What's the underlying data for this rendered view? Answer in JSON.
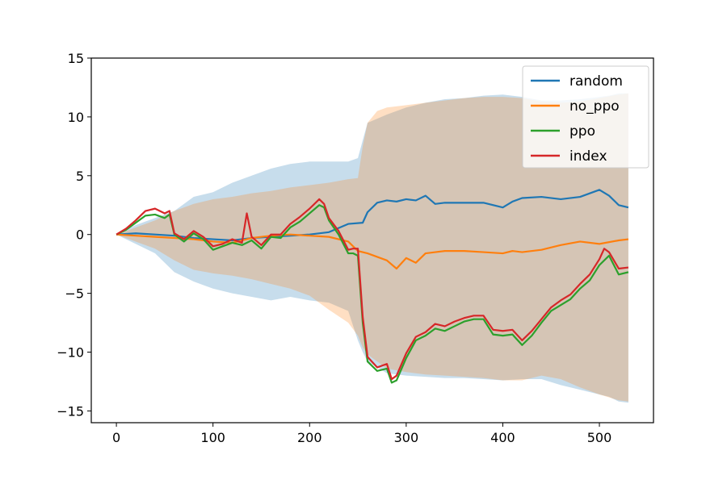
{
  "chart_data": {
    "type": "line",
    "xlim": [
      -26,
      556
    ],
    "ylim": [
      -16,
      15
    ],
    "xticks": [
      0,
      100,
      200,
      300,
      400,
      500
    ],
    "yticks": [
      -15,
      -10,
      -5,
      0,
      5,
      10,
      15
    ],
    "xtick_labels": [
      "0",
      "100",
      "200",
      "300",
      "400",
      "500"
    ],
    "ytick_labels": [
      "−15",
      "−10",
      "−5",
      "0",
      "5",
      "10",
      "15"
    ],
    "legend_position": "top-right",
    "series": [
      {
        "name": "random",
        "color": "#1f77b4",
        "x": [
          0,
          20,
          40,
          60,
          80,
          100,
          120,
          140,
          160,
          180,
          200,
          220,
          240,
          255,
          260,
          270,
          280,
          290,
          300,
          310,
          320,
          330,
          340,
          360,
          380,
          400,
          410,
          420,
          440,
          460,
          480,
          500,
          510,
          520,
          530
        ],
        "y": [
          0,
          0.1,
          0.0,
          -0.1,
          -0.3,
          -0.4,
          -0.5,
          -0.3,
          -0.2,
          -0.1,
          0.0,
          0.2,
          0.9,
          1.0,
          1.9,
          2.7,
          2.9,
          2.8,
          3.0,
          2.9,
          3.3,
          2.6,
          2.7,
          2.7,
          2.7,
          2.3,
          2.8,
          3.1,
          3.2,
          3.0,
          3.2,
          3.8,
          3.3,
          2.5,
          2.3
        ],
        "band": {
          "x": [
            0,
            20,
            40,
            60,
            80,
            100,
            120,
            140,
            160,
            180,
            200,
            220,
            240,
            250,
            255,
            260,
            280,
            300,
            320,
            340,
            360,
            380,
            400,
            420,
            440,
            460,
            480,
            500,
            510,
            520,
            530
          ],
          "upper": [
            0,
            0.8,
            1.4,
            2.0,
            3.2,
            3.6,
            4.4,
            5.0,
            5.6,
            6.0,
            6.2,
            6.2,
            6.2,
            6.5,
            8.0,
            9.5,
            10.2,
            10.8,
            11.2,
            11.5,
            11.6,
            11.8,
            11.9,
            11.7,
            11.4,
            11.4,
            11.5,
            11.7,
            11.8,
            12.0,
            12.0
          ],
          "lower": [
            0,
            -0.8,
            -1.6,
            -3.2,
            -4.0,
            -4.6,
            -5.0,
            -5.3,
            -5.6,
            -5.3,
            -5.6,
            -5.8,
            -6.5,
            -9.0,
            -10.0,
            -10.8,
            -11.8,
            -12.0,
            -12.1,
            -12.2,
            -12.2,
            -12.3,
            -12.4,
            -12.3,
            -12.3,
            -12.8,
            -13.2,
            -13.6,
            -13.8,
            -14.2,
            -14.3
          ]
        }
      },
      {
        "name": "no_ppo",
        "color": "#ff7f0e",
        "x": [
          0,
          20,
          40,
          60,
          80,
          100,
          120,
          140,
          160,
          180,
          200,
          220,
          240,
          250,
          260,
          270,
          280,
          290,
          300,
          310,
          320,
          340,
          360,
          380,
          400,
          410,
          420,
          440,
          460,
          480,
          500,
          520,
          530
        ],
        "y": [
          0,
          -0.1,
          -0.2,
          -0.3,
          -0.4,
          -0.6,
          -0.7,
          -0.3,
          -0.1,
          0.0,
          -0.1,
          -0.2,
          -0.6,
          -1.4,
          -1.6,
          -1.9,
          -2.2,
          -2.9,
          -2.0,
          -2.4,
          -1.6,
          -1.4,
          -1.4,
          -1.5,
          -1.6,
          -1.4,
          -1.5,
          -1.3,
          -0.9,
          -0.6,
          -0.8,
          -0.5,
          -0.4
        ],
        "band": {
          "x": [
            0,
            20,
            40,
            60,
            80,
            100,
            120,
            140,
            160,
            180,
            200,
            220,
            240,
            250,
            255,
            260,
            270,
            280,
            300,
            320,
            340,
            360,
            380,
            400,
            420,
            440,
            460,
            480,
            500,
            520,
            530
          ],
          "upper": [
            0,
            0.6,
            1.2,
            2.0,
            2.6,
            3.0,
            3.2,
            3.5,
            3.7,
            4.0,
            4.2,
            4.4,
            4.7,
            4.8,
            7.5,
            9.5,
            10.5,
            10.8,
            11.0,
            11.2,
            11.4,
            11.6,
            11.7,
            11.7,
            11.6,
            11.3,
            11.2,
            11.3,
            11.6,
            11.9,
            12.0
          ],
          "lower": [
            0,
            -0.6,
            -1.2,
            -2.2,
            -3.0,
            -3.3,
            -3.5,
            -3.8,
            -4.2,
            -4.6,
            -5.2,
            -6.4,
            -7.5,
            -8.6,
            -9.6,
            -10.2,
            -10.8,
            -11.4,
            -11.7,
            -11.9,
            -12.0,
            -12.1,
            -12.2,
            -12.4,
            -12.4,
            -12.0,
            -12.3,
            -13.0,
            -13.6,
            -14.1,
            -14.2
          ]
        }
      },
      {
        "name": "ppo",
        "color": "#2ca02c",
        "x": [
          0,
          10,
          20,
          30,
          40,
          50,
          55,
          60,
          70,
          80,
          90,
          100,
          110,
          120,
          130,
          140,
          150,
          160,
          170,
          180,
          190,
          200,
          210,
          215,
          220,
          230,
          240,
          245,
          250,
          255,
          260,
          270,
          280,
          285,
          290,
          300,
          310,
          320,
          330,
          340,
          350,
          360,
          370,
          380,
          390,
          400,
          410,
          420,
          430,
          440,
          450,
          460,
          470,
          480,
          490,
          500,
          510,
          520,
          530
        ],
        "y": [
          0,
          0.4,
          1.0,
          1.6,
          1.7,
          1.4,
          1.7,
          0.0,
          -0.6,
          0.1,
          -0.4,
          -1.3,
          -1.0,
          -0.7,
          -0.9,
          -0.5,
          -1.2,
          -0.2,
          -0.3,
          0.6,
          1.1,
          1.8,
          2.5,
          2.3,
          1.2,
          0.0,
          -1.6,
          -1.6,
          -1.8,
          -7.5,
          -10.8,
          -11.6,
          -11.4,
          -12.6,
          -12.4,
          -10.5,
          -9.0,
          -8.6,
          -8.0,
          -8.2,
          -7.8,
          -7.4,
          -7.2,
          -7.2,
          -8.5,
          -8.6,
          -8.5,
          -9.4,
          -8.6,
          -7.5,
          -6.5,
          -6.0,
          -5.5,
          -4.6,
          -3.9,
          -2.6,
          -1.8,
          -3.4,
          -3.2
        ]
      },
      {
        "name": "index",
        "color": "#d62728",
        "x": [
          0,
          10,
          20,
          30,
          40,
          50,
          55,
          60,
          70,
          80,
          90,
          100,
          110,
          120,
          130,
          135,
          140,
          150,
          160,
          170,
          180,
          190,
          200,
          210,
          215,
          220,
          230,
          240,
          245,
          250,
          255,
          260,
          270,
          280,
          285,
          290,
          300,
          310,
          320,
          330,
          340,
          350,
          360,
          370,
          380,
          390,
          400,
          410,
          420,
          430,
          440,
          450,
          460,
          470,
          480,
          490,
          500,
          505,
          510,
          520,
          530
        ],
        "y": [
          0,
          0.5,
          1.2,
          2.0,
          2.2,
          1.8,
          2.0,
          0.1,
          -0.4,
          0.3,
          -0.2,
          -1.0,
          -0.8,
          -0.4,
          -0.7,
          1.8,
          -0.2,
          -0.9,
          0.0,
          0.0,
          0.9,
          1.5,
          2.2,
          3.0,
          2.6,
          1.4,
          0.3,
          -1.3,
          -1.2,
          -1.2,
          -7.0,
          -10.4,
          -11.3,
          -11.0,
          -12.3,
          -12.0,
          -10.1,
          -8.7,
          -8.3,
          -7.6,
          -7.8,
          -7.4,
          -7.1,
          -6.9,
          -6.9,
          -8.1,
          -8.2,
          -8.1,
          -9.0,
          -8.2,
          -7.2,
          -6.2,
          -5.6,
          -5.1,
          -4.2,
          -3.4,
          -2.1,
          -1.2,
          -1.5,
          -2.9,
          -2.8
        ]
      }
    ]
  }
}
